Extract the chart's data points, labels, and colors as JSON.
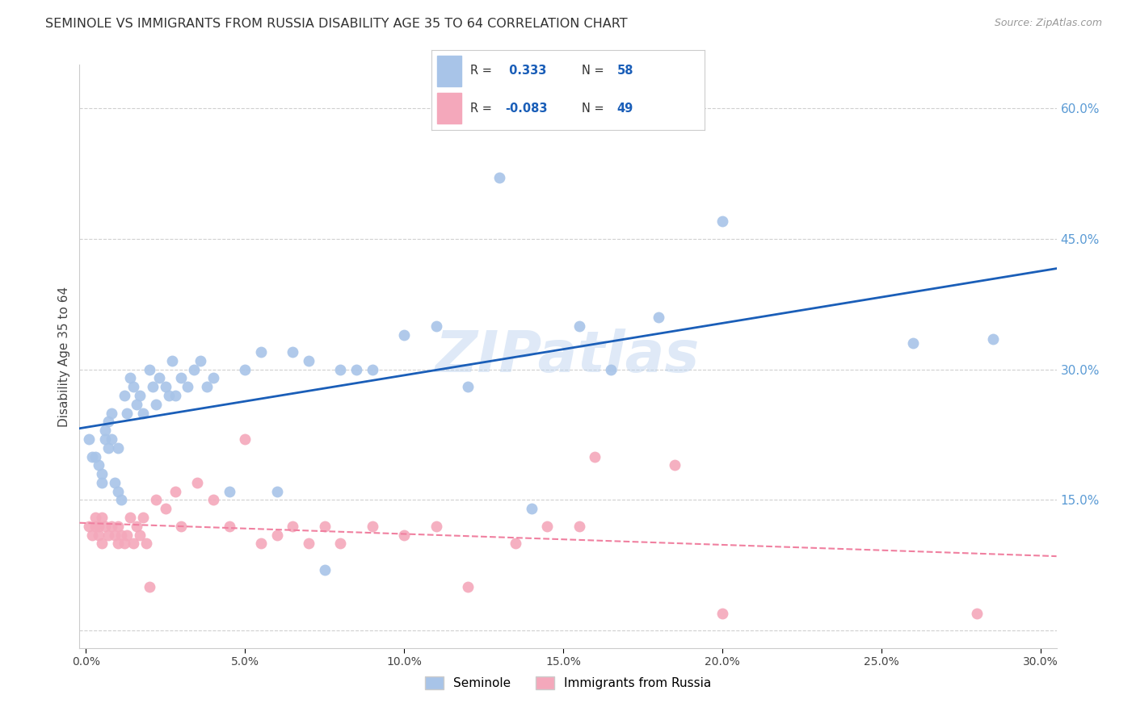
{
  "title": "SEMINOLE VS IMMIGRANTS FROM RUSSIA DISABILITY AGE 35 TO 64 CORRELATION CHART",
  "source": "Source: ZipAtlas.com",
  "xlim": [
    -0.002,
    0.305
  ],
  "ylim": [
    -0.02,
    0.65
  ],
  "ylabel": "Disability Age 35 to 64",
  "seminole_R": 0.333,
  "seminole_N": 58,
  "russia_R": -0.083,
  "russia_N": 49,
  "seminole_color": "#a8c4e8",
  "russia_color": "#f4a8bb",
  "seminole_line_color": "#1a5eb8",
  "russia_line_color": "#f080a0",
  "right_yticks": [
    0.15,
    0.3,
    0.45,
    0.6
  ],
  "xticks": [
    0.0,
    0.05,
    0.1,
    0.15,
    0.2,
    0.25,
    0.3
  ],
  "yticks_left": [],
  "watermark": "ZIPatlas",
  "background_color": "#ffffff",
  "grid_color": "#d0d0d0",
  "seminole_x": [
    0.001,
    0.002,
    0.003,
    0.004,
    0.005,
    0.005,
    0.006,
    0.006,
    0.007,
    0.007,
    0.008,
    0.008,
    0.009,
    0.01,
    0.01,
    0.011,
    0.012,
    0.013,
    0.014,
    0.015,
    0.016,
    0.017,
    0.018,
    0.02,
    0.021,
    0.022,
    0.023,
    0.025,
    0.026,
    0.027,
    0.028,
    0.03,
    0.032,
    0.034,
    0.036,
    0.038,
    0.04,
    0.045,
    0.05,
    0.055,
    0.06,
    0.065,
    0.07,
    0.075,
    0.08,
    0.085,
    0.09,
    0.1,
    0.11,
    0.12,
    0.13,
    0.14,
    0.155,
    0.165,
    0.18,
    0.2,
    0.26,
    0.285
  ],
  "seminole_y": [
    0.22,
    0.2,
    0.2,
    0.19,
    0.18,
    0.17,
    0.23,
    0.22,
    0.24,
    0.21,
    0.25,
    0.22,
    0.17,
    0.21,
    0.16,
    0.15,
    0.27,
    0.25,
    0.29,
    0.28,
    0.26,
    0.27,
    0.25,
    0.3,
    0.28,
    0.26,
    0.29,
    0.28,
    0.27,
    0.31,
    0.27,
    0.29,
    0.28,
    0.3,
    0.31,
    0.28,
    0.29,
    0.16,
    0.3,
    0.32,
    0.16,
    0.32,
    0.31,
    0.07,
    0.3,
    0.3,
    0.3,
    0.34,
    0.35,
    0.28,
    0.52,
    0.14,
    0.35,
    0.3,
    0.36,
    0.47,
    0.33,
    0.335
  ],
  "russia_x": [
    0.001,
    0.002,
    0.003,
    0.003,
    0.004,
    0.004,
    0.005,
    0.005,
    0.006,
    0.007,
    0.008,
    0.009,
    0.01,
    0.01,
    0.011,
    0.012,
    0.013,
    0.014,
    0.015,
    0.016,
    0.017,
    0.018,
    0.019,
    0.02,
    0.022,
    0.025,
    0.028,
    0.03,
    0.035,
    0.04,
    0.045,
    0.05,
    0.055,
    0.06,
    0.065,
    0.07,
    0.075,
    0.08,
    0.09,
    0.1,
    0.11,
    0.12,
    0.135,
    0.145,
    0.155,
    0.16,
    0.185,
    0.2,
    0.28
  ],
  "russia_y": [
    0.12,
    0.11,
    0.12,
    0.13,
    0.11,
    0.12,
    0.1,
    0.13,
    0.12,
    0.11,
    0.12,
    0.11,
    0.1,
    0.12,
    0.11,
    0.1,
    0.11,
    0.13,
    0.1,
    0.12,
    0.11,
    0.13,
    0.1,
    0.05,
    0.15,
    0.14,
    0.16,
    0.12,
    0.17,
    0.15,
    0.12,
    0.22,
    0.1,
    0.11,
    0.12,
    0.1,
    0.12,
    0.1,
    0.12,
    0.11,
    0.12,
    0.05,
    0.1,
    0.12,
    0.12,
    0.2,
    0.19,
    0.02,
    0.02
  ]
}
